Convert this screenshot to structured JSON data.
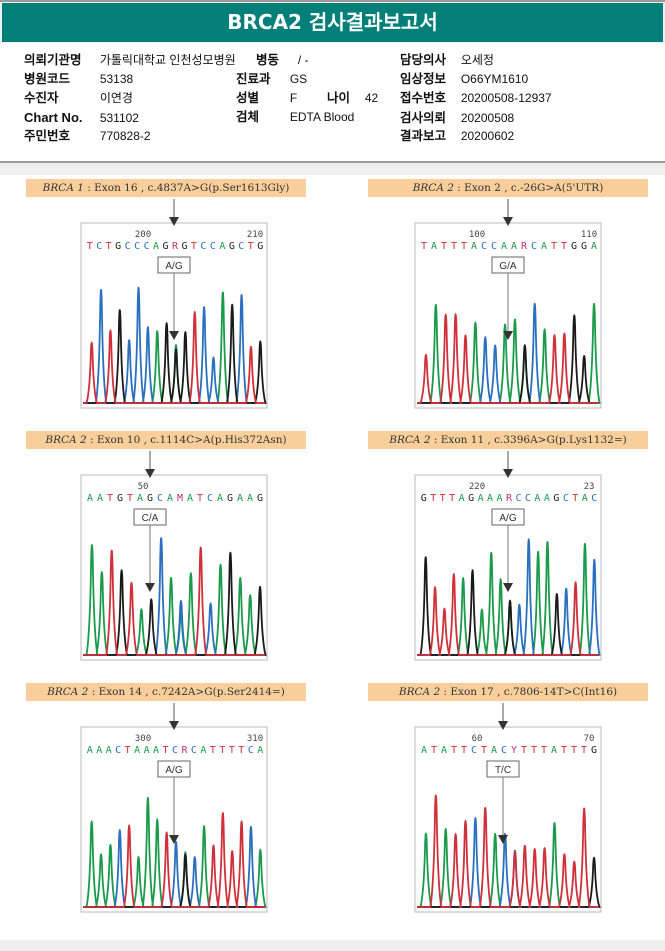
{
  "report": {
    "title": "BRCA2 검사결과보고서",
    "fields": {
      "institution": {
        "label": "의뢰기관명",
        "value": "가톨릭대학교 인천성모병원"
      },
      "ward": {
        "label": "병동",
        "value": "/ -"
      },
      "doctor": {
        "label": "담당의사",
        "value": "오세정"
      },
      "hospital_code": {
        "label": "병원코드",
        "value": "53138"
      },
      "department": {
        "label": "진료과",
        "value": "GS"
      },
      "clinical_info": {
        "label": "임상정보",
        "value": "O66YM1610"
      },
      "patient": {
        "label": "수진자",
        "value": "이연경"
      },
      "sex": {
        "label": "성별",
        "value": "F"
      },
      "age": {
        "label": "나이",
        "value": "42"
      },
      "receipt_no": {
        "label": "접수번호",
        "value": "20200508-12937"
      },
      "chart_no": {
        "label": "Chart No.",
        "value": "531102"
      },
      "specimen": {
        "label": "검체",
        "value": "EDTA Blood"
      },
      "test_request": {
        "label": "검사의뢰",
        "value": "20200508"
      },
      "resident_no": {
        "label": "주민번호",
        "value": "770828-2"
      },
      "report_date": {
        "label": "결과보고",
        "value": "20200602"
      }
    }
  },
  "variants": [
    {
      "gene": "BRCA 1",
      "detail": ": Exon 16 , c.4837A>G(p.Ser1613Gly)",
      "sequence": "TCTGCCCAGRGTCCAGCTG",
      "pos_labels": [
        "200",
        "210"
      ],
      "call": "A/G",
      "colors": {
        "A": "#1a9a4a",
        "C": "#2a6fc0",
        "G": "#222222",
        "T": "#d0303a",
        "R": "#c0306a"
      }
    },
    {
      "gene": "BRCA 2",
      "detail": ": Exon 2 , c.-26G>A(5'UTR)",
      "sequence": "TATTTACCAARCATTGGA",
      "pos_labels": [
        "100",
        "110"
      ],
      "call": "G/A",
      "colors": {
        "A": "#1a9a4a",
        "C": "#2a6fc0",
        "G": "#222222",
        "T": "#d0303a",
        "R": "#c0306a"
      }
    },
    {
      "gene": "BRCA 2",
      "detail": ": Exon 10 , c.1114C>A(p.His372Asn)",
      "sequence": "AATGTAGCAMATCAGAAG",
      "pos_labels": [
        "50"
      ],
      "call": "C/A",
      "colors": {
        "A": "#1a9a4a",
        "C": "#2a6fc0",
        "G": "#222222",
        "T": "#d0303a",
        "M": "#c0306a"
      }
    },
    {
      "gene": "BRCA 2",
      "detail": ": Exon 11 , c.3396A>G(p.Lys1132=)",
      "sequence": "GTTTAGAAARCCAAGCTAC",
      "pos_labels": [
        "220",
        "23"
      ],
      "call": "A/G",
      "colors": {
        "A": "#1a9a4a",
        "C": "#2a6fc0",
        "G": "#222222",
        "T": "#d0303a",
        "R": "#c0306a"
      }
    },
    {
      "gene": "BRCA 2",
      "detail": ": Exon 14 , c.7242A>G(p.Ser2414=)",
      "sequence": "AAACTAAATCRCATTTTCA",
      "pos_labels": [
        "300",
        "310"
      ],
      "call": "A/G",
      "colors": {
        "A": "#1a9a4a",
        "C": "#2a6fc0",
        "G": "#222222",
        "T": "#d0303a",
        "R": "#c0306a"
      }
    },
    {
      "gene": "BRCA 2",
      "detail": ": Exon 17 , c.7806-14T>C(Int16)",
      "sequence": "ATATTCTACYTTTATTTG",
      "pos_labels": [
        "60",
        "70"
      ],
      "call": "T/C",
      "colors": {
        "A": "#1a9a4a",
        "C": "#2a6fc0",
        "G": "#222222",
        "T": "#d0303a",
        "Y": "#c0306a"
      }
    }
  ],
  "trace_colors": {
    "A": "#1a9a4a",
    "C": "#2a6fc0",
    "G": "#1a1a1a",
    "T": "#d0303a"
  }
}
